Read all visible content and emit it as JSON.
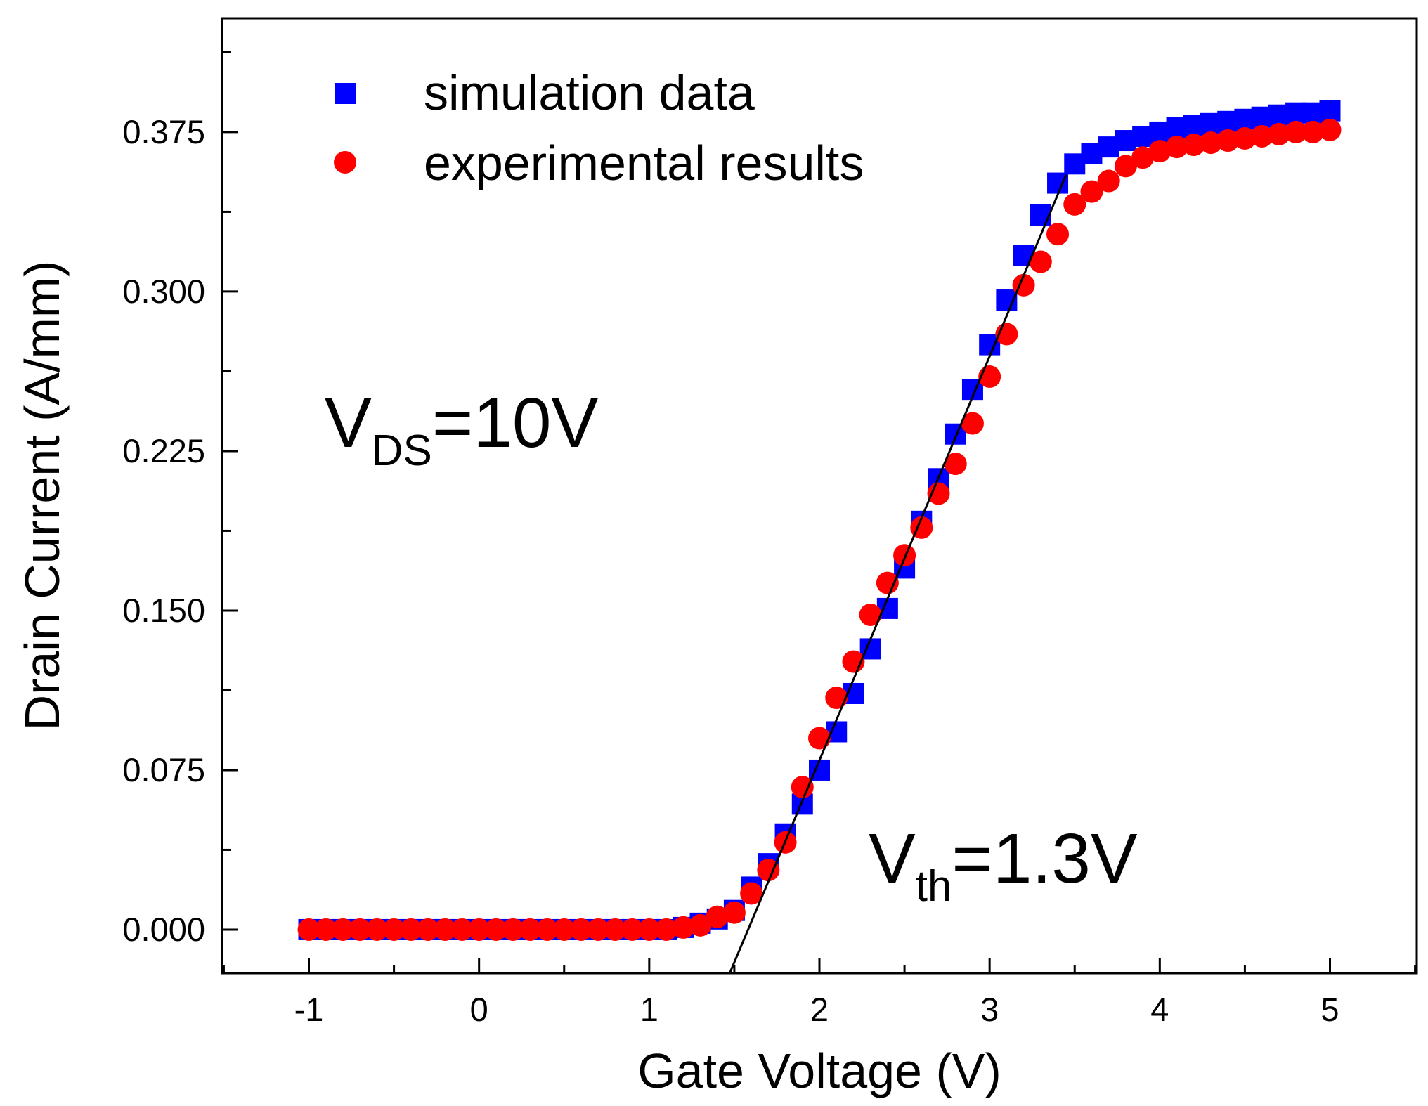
{
  "chart_data": {
    "type": "scatter",
    "xlabel": "Gate Voltage (V)",
    "ylabel": "Drain Current (A/mm)",
    "xlim": [
      -1.51,
      5.51
    ],
    "ylim": [
      -0.0205,
      0.4285
    ],
    "xticks": [
      -1,
      0,
      1,
      2,
      3,
      4,
      5
    ],
    "xtick_labels": [
      "-1",
      "0",
      "1",
      "2",
      "3",
      "4",
      "5"
    ],
    "yticks": [
      0,
      0.075,
      0.15,
      0.225,
      0.3,
      0.375
    ],
    "ytick_labels": [
      "0.000",
      "0.075",
      "0.150",
      "0.225",
      "0.300",
      "0.375"
    ],
    "grid": false,
    "legend_position": "top-left",
    "series": [
      {
        "name": "simulation data",
        "marker": "square",
        "color": "#0000ff",
        "x": [
          -1.0,
          -0.9,
          -0.8,
          -0.7,
          -0.6,
          -0.5,
          -0.4,
          -0.3,
          -0.2,
          -0.1,
          0.0,
          0.1,
          0.2,
          0.3,
          0.4,
          0.5,
          0.6,
          0.7,
          0.8,
          0.9,
          1.0,
          1.1,
          1.2,
          1.3,
          1.4,
          1.5,
          1.6,
          1.7,
          1.8,
          1.9,
          2.0,
          2.1,
          2.2,
          2.3,
          2.4,
          2.5,
          2.6,
          2.7,
          2.8,
          2.9,
          3.0,
          3.1,
          3.2,
          3.3,
          3.4,
          3.5,
          3.6,
          3.7,
          3.8,
          3.9,
          4.0,
          4.1,
          4.2,
          4.3,
          4.4,
          4.5,
          4.6,
          4.7,
          4.8,
          4.9,
          5.0
        ],
        "y": [
          0,
          0,
          0,
          0,
          0,
          0,
          0,
          0,
          0,
          0,
          0,
          0,
          0,
          0,
          0,
          0,
          0,
          0,
          0,
          0,
          0,
          0,
          0.001,
          0.003,
          0.005,
          0.009,
          0.02,
          0.031,
          0.045,
          0.059,
          0.075,
          0.093,
          0.111,
          0.132,
          0.151,
          0.17,
          0.192,
          0.212,
          0.233,
          0.254,
          0.275,
          0.296,
          0.317,
          0.336,
          0.351,
          0.36,
          0.365,
          0.368,
          0.371,
          0.373,
          0.375,
          0.377,
          0.378,
          0.379,
          0.38,
          0.381,
          0.382,
          0.383,
          0.384,
          0.384,
          0.385
        ]
      },
      {
        "name": "experimental results",
        "marker": "circle",
        "color": "#ff0000",
        "x": [
          -1.0,
          -0.9,
          -0.8,
          -0.7,
          -0.6,
          -0.5,
          -0.4,
          -0.3,
          -0.2,
          -0.1,
          0.0,
          0.1,
          0.2,
          0.3,
          0.4,
          0.5,
          0.6,
          0.7,
          0.8,
          0.9,
          1.0,
          1.1,
          1.2,
          1.3,
          1.4,
          1.5,
          1.6,
          1.7,
          1.8,
          1.9,
          2.0,
          2.1,
          2.2,
          2.3,
          2.4,
          2.5,
          2.6,
          2.7,
          2.8,
          2.9,
          3.0,
          3.1,
          3.2,
          3.3,
          3.4,
          3.5,
          3.6,
          3.7,
          3.8,
          3.9,
          4.0,
          4.1,
          4.2,
          4.3,
          4.4,
          4.5,
          4.6,
          4.7,
          4.8,
          4.9,
          5.0
        ],
        "y": [
          0,
          0,
          0,
          0,
          0,
          0,
          0,
          0,
          0,
          0,
          0,
          0,
          0,
          0,
          0,
          0,
          0,
          0,
          0,
          0,
          0,
          0,
          0.001,
          0.002,
          0.006,
          0.008,
          0.017,
          0.028,
          0.041,
          0.067,
          0.09,
          0.109,
          0.126,
          0.148,
          0.163,
          0.176,
          0.189,
          0.205,
          0.219,
          0.238,
          0.26,
          0.28,
          0.303,
          0.314,
          0.327,
          0.341,
          0.347,
          0.352,
          0.359,
          0.363,
          0.366,
          0.368,
          0.369,
          0.37,
          0.371,
          0.372,
          0.373,
          0.374,
          0.375,
          0.375,
          0.376
        ]
      }
    ],
    "fit_line": {
      "x": [
        1.473,
        3.45
      ],
      "y": [
        -0.0205,
        0.355
      ],
      "color": "#000000"
    },
    "annotations": {
      "vds_main": "V",
      "vds_sub": "DS",
      "vds_rest": "=10V",
      "vth_main": "V",
      "vth_sub": "th",
      "vth_rest": "=1.3V"
    }
  }
}
